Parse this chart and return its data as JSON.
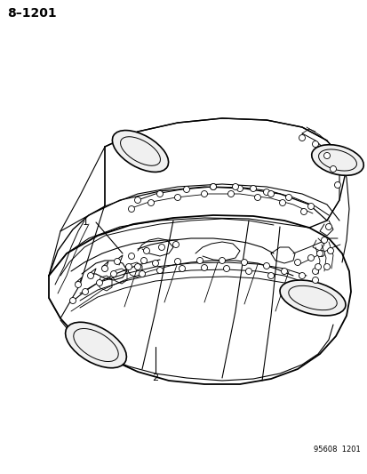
{
  "title": "8–1201",
  "part_number": "95608  1201",
  "bg_color": "#ffffff",
  "line_color": "#000000",
  "label1": "1",
  "label2": "2",
  "title_fontsize": 10,
  "label_fontsize": 8,
  "part_fontsize": 6
}
